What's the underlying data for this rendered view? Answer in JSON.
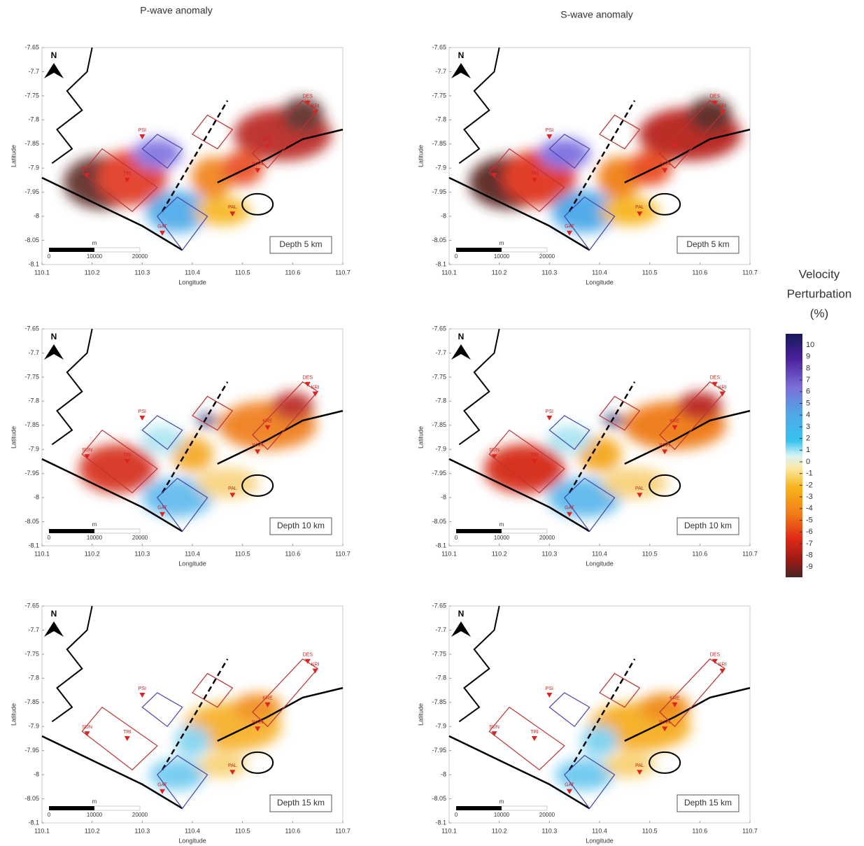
{
  "columns": [
    "P-wave anomaly",
    "S-wave anomaly"
  ],
  "panels": [
    {
      "depth": "Depth 5 km"
    },
    {
      "depth": "Depth 5 km"
    },
    {
      "depth": "Depth 10 km"
    },
    {
      "depth": "Depth 10 km"
    },
    {
      "depth": "Depth 15 km"
    },
    {
      "depth": "Depth 15 km"
    }
  ],
  "axes": {
    "xlabel": "Longitude",
    "ylabel": "Latitude",
    "north": "N",
    "xlim": [
      110.1,
      110.7
    ],
    "ylim": [
      -7.65,
      -8.1
    ],
    "xticks": [
      110.1,
      110.2,
      110.3,
      110.4,
      110.5,
      110.6,
      110.7
    ],
    "yticks": [
      -7.65,
      -7.7,
      -7.75,
      -7.8,
      -7.85,
      -7.9,
      -7.95,
      -8,
      -8.05,
      -8.1
    ]
  },
  "scalebar": {
    "unit": "m",
    "ticks": [
      0,
      10000,
      20000
    ]
  },
  "stations": [
    "DES",
    "KRI",
    "PSI",
    "SUN",
    "TRI",
    "KRE",
    "WAN",
    "PAL",
    "GAT"
  ],
  "colorbar": {
    "title": [
      "Velocity",
      "Perturbation",
      "(%)"
    ],
    "ticks": [
      10,
      9,
      8,
      7,
      6,
      5,
      4,
      3,
      2,
      1,
      0,
      -1,
      -2,
      -3,
      -4,
      -5,
      -6,
      -7,
      -8,
      -9
    ]
  }
}
